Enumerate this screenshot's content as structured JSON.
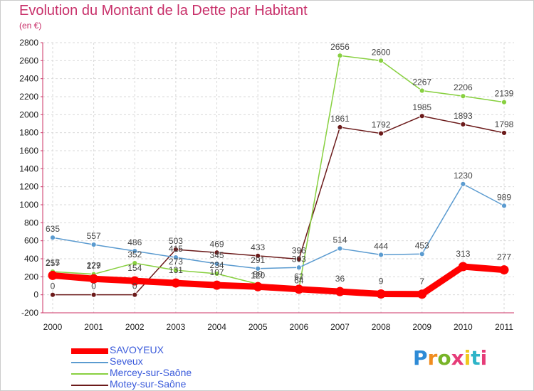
{
  "title": "Evolution du Montant de la Dette par Habitant",
  "subtitle": "(en €)",
  "logo": {
    "letters": [
      "P",
      "r",
      "o",
      "x",
      "i",
      "t",
      "i"
    ],
    "colors": [
      "#2e8bd6",
      "#f08c1e",
      "#78b428",
      "#e63c78",
      "#f0c81e",
      "#2eb4c8",
      "#e63c78"
    ]
  },
  "chart_data": {
    "type": "line",
    "title": "Evolution du Montant de la Dette par Habitant",
    "subtitle": "(en €)",
    "xlabel": "",
    "ylabel": "",
    "x": [
      "2000",
      "2001",
      "2002",
      "2003",
      "2004",
      "2005",
      "2006",
      "2007",
      "2008",
      "2009",
      "2010",
      "2011"
    ],
    "ylim": [
      -200,
      2800
    ],
    "yticks": [
      "-200",
      "0",
      "200",
      "400",
      "600",
      "800",
      "1000",
      "1200",
      "1400",
      "1600",
      "1800",
      "2000",
      "2200",
      "2400",
      "2600",
      "2800"
    ],
    "grid": true,
    "legend_position": "bottom-left",
    "series": [
      {
        "name": "Motey-sur-Saône",
        "color": "#6b1a1a",
        "values": [
          0,
          0,
          0,
          503,
          469,
          433,
          396,
          1861,
          1792,
          1985,
          1893,
          1798
        ],
        "labels": [
          "0",
          "0",
          "0",
          "503",
          "469",
          "433",
          "396",
          "1861",
          "1792",
          "1985",
          "1893",
          "1798"
        ]
      },
      {
        "name": "Mercey-sur-Saône",
        "color": "#88d040",
        "values": [
          257,
          229,
          352,
          273,
          234,
          120,
          64,
          2656,
          2600,
          2267,
          2206,
          2139
        ],
        "labels": [
          "257",
          "229",
          "352",
          "273",
          "234",
          "120",
          "64",
          "2656",
          "2600",
          "2267",
          "2206",
          "2139"
        ]
      },
      {
        "name": "Seveux",
        "color": "#5b9bd0",
        "values": [
          635,
          557,
          486,
          415,
          345,
          291,
          303,
          514,
          444,
          453,
          1230,
          989
        ],
        "labels": [
          "635",
          "557",
          "486",
          "415",
          "345",
          "291",
          "303",
          "514",
          "444",
          "453",
          "1230",
          "989"
        ]
      },
      {
        "name": "SAVOYEUX",
        "color": "#ff0000",
        "values": [
          215,
          177,
          154,
          131,
          107,
          90,
          62,
          36,
          9,
          7,
          313,
          277
        ],
        "labels": [
          "215",
          "177",
          "154",
          "131",
          "107",
          "90",
          "62",
          "36",
          "9",
          "7",
          "313",
          "277"
        ]
      }
    ],
    "legend": [
      {
        "name": "SAVOYEUX",
        "color": "#ff0000"
      },
      {
        "name": "Seveux",
        "color": "#5b9bd0"
      },
      {
        "name": "Mercey-sur-Saône",
        "color": "#88d040"
      },
      {
        "name": "Motey-sur-Saône",
        "color": "#6b1a1a"
      }
    ]
  }
}
